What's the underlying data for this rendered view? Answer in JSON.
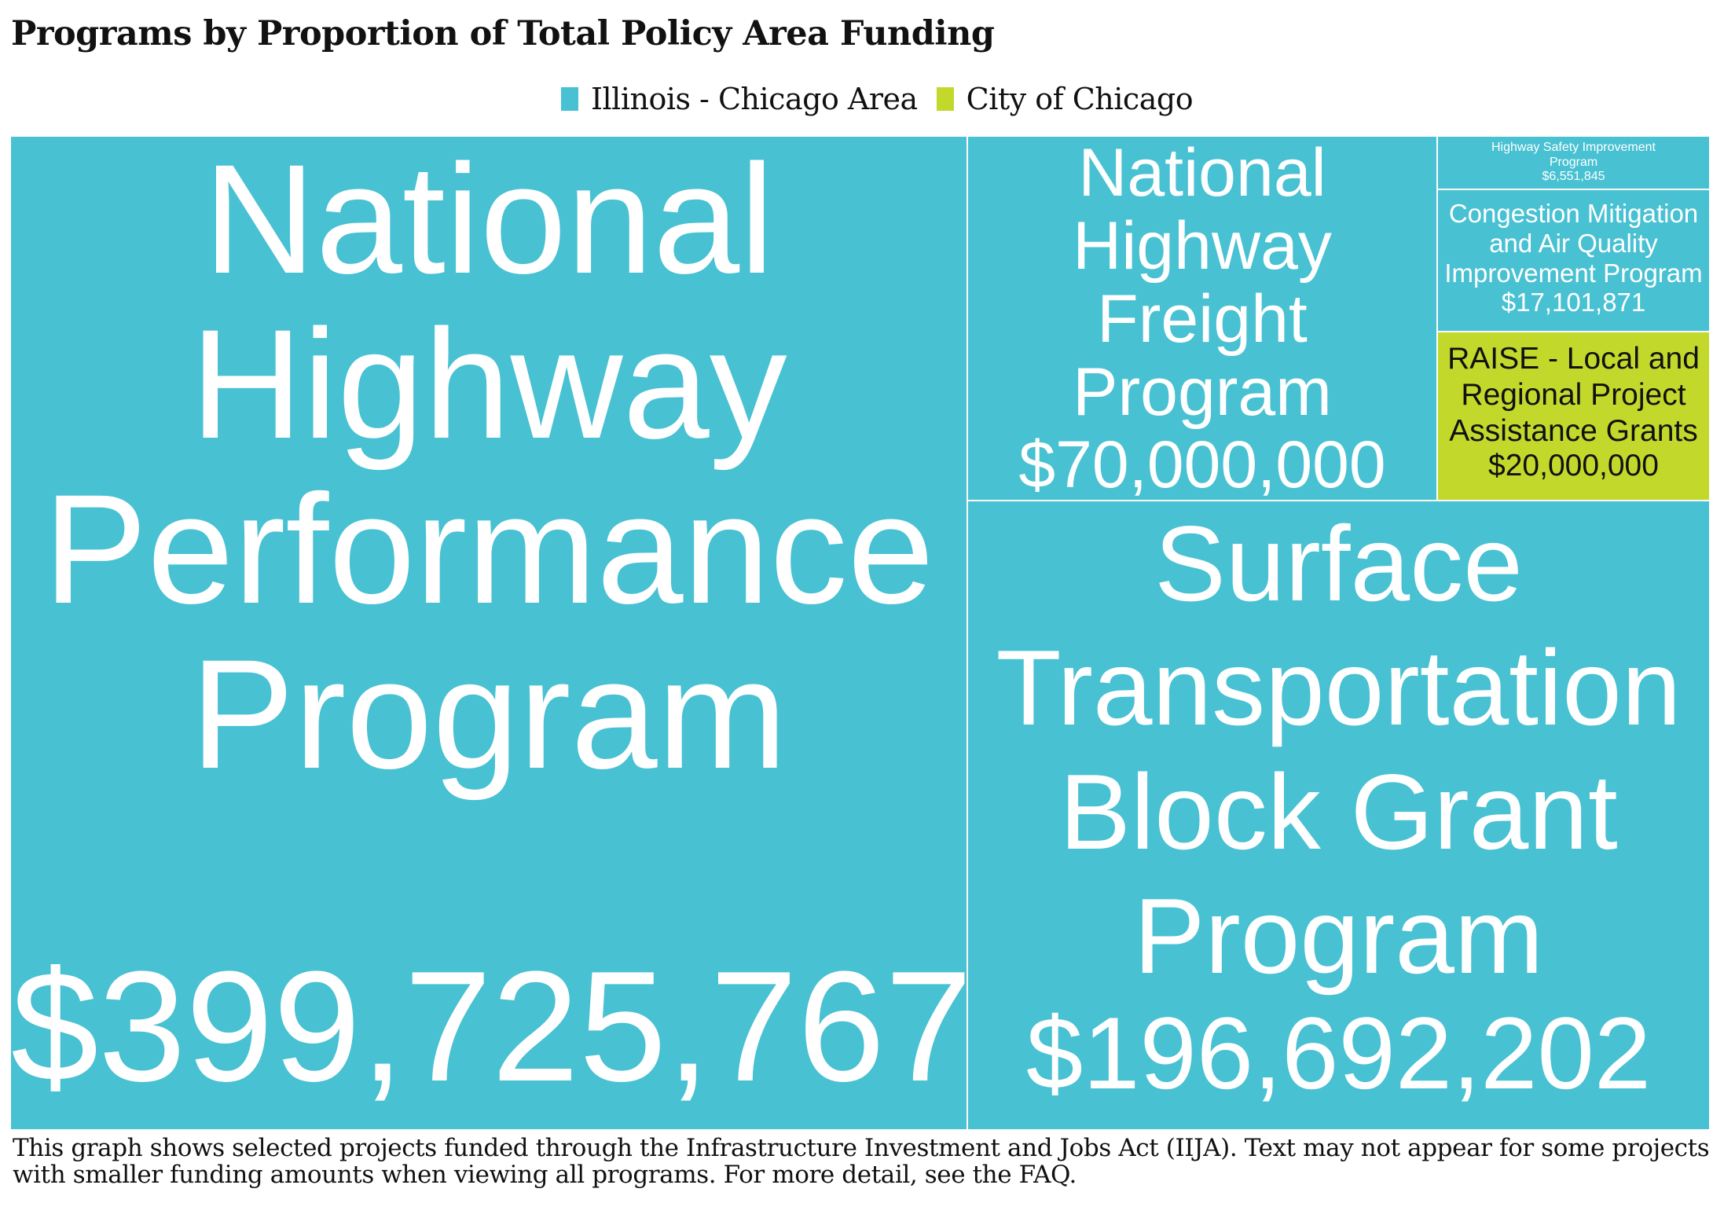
{
  "chart_data": {
    "type": "treemap",
    "title": "Programs by Proportion of Total Policy Area Funding",
    "legend": [
      {
        "name": "Illinois - Chicago Area",
        "color": "#48C1D2"
      },
      {
        "name": "City of Chicago",
        "color": "#C2D92C"
      }
    ],
    "legend_placement": "top-center",
    "items": [
      {
        "name": "National\nHighway\nPerformance\nProgram",
        "value_label": "$399,725,767",
        "value": 399725767,
        "group": "Illinois - Chicago Area"
      },
      {
        "name": "Surface\nTransportation\nBlock Grant\nProgram",
        "value_label": "$196,692,202",
        "value": 196692202,
        "group": "Illinois - Chicago Area"
      },
      {
        "name": "National\nHighway\nFreight\nProgram",
        "value_label": "$70,000,000",
        "value": 70000000,
        "group": "Illinois - Chicago Area"
      },
      {
        "name": "RAISE - Local and\nRegional Project\nAssistance Grants",
        "value_label": "$20,000,000",
        "value": 20000000,
        "group": "City of Chicago"
      },
      {
        "name": "Congestion Mitigation\nand Air Quality\nImprovement Program",
        "value_label": "$17,101,871",
        "value": 17101871,
        "group": "Illinois - Chicago Area"
      },
      {
        "name": "Highway Safety Improvement\nProgram",
        "value_label": "$6,551,845",
        "value": 6551845,
        "group": "Illinois - Chicago Area"
      }
    ]
  },
  "footnote": {
    "line1": "This graph shows selected projects funded through the Infrastructure Investment and Jobs Act (IIJA). Text may not appear for some projects",
    "line2": "with smaller funding amounts when viewing all programs. For more detail, see the FAQ."
  }
}
